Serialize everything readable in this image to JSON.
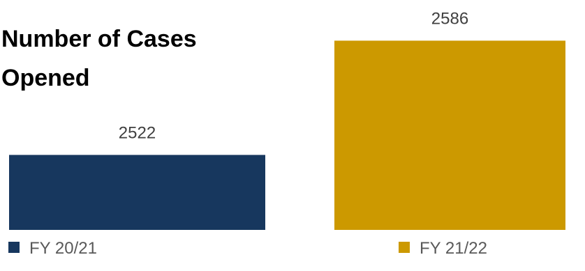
{
  "chart_data": {
    "type": "bar",
    "title": "Number of Cases Opened",
    "categories": [
      "FY 20/21",
      "FY 21/22"
    ],
    "values": [
      2522,
      2586
    ],
    "colors": [
      "#17375e",
      "#cc9900"
    ],
    "ylim": [
      2480,
      2600
    ]
  }
}
